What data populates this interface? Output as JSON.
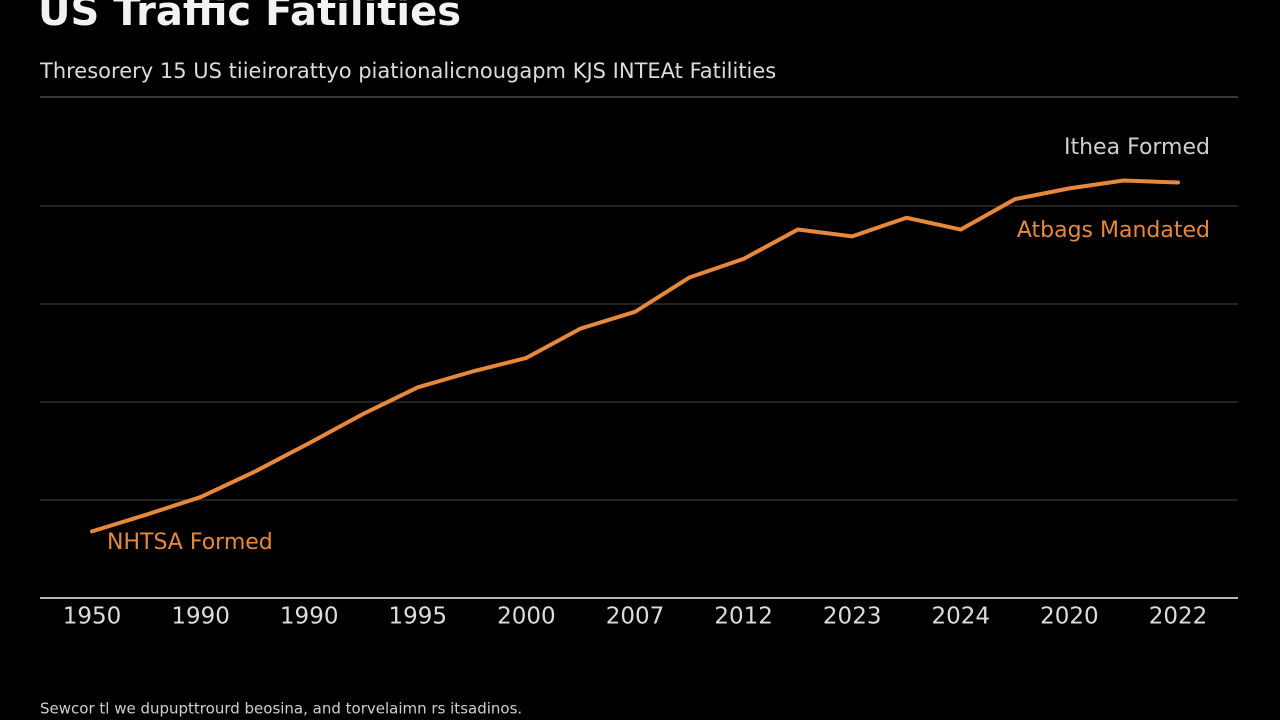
{
  "chart_data": {
    "type": "line",
    "title": "US Traffic Fatilities",
    "subtitle": "Thresorery 15 US tiieirorattyo piationalicnougapm KJS INTEAt Fatilities",
    "footnote": "Sewcor tl we dupupttrourd beosina, and torvelaimn rs itsadinos.",
    "categories": [
      "1950",
      null,
      "1990",
      null,
      "1990",
      null,
      "1995",
      null,
      "2000",
      null,
      "2007",
      null,
      "2012",
      null,
      "2023",
      null,
      "2024",
      null,
      "2020",
      null,
      "2022"
    ],
    "series": [
      {
        "name": "US Traffic Fatilities",
        "color": "#e8883a",
        "values": [
          0.68,
          0.85,
          1.03,
          1.29,
          1.58,
          1.88,
          2.15,
          2.31,
          2.45,
          2.75,
          2.92,
          3.27,
          3.46,
          3.76,
          3.69,
          3.88,
          3.76,
          4.07,
          4.18,
          4.26,
          4.24
        ]
      }
    ],
    "ylim": [
      0,
      5
    ],
    "yticks": [
      1,
      2,
      3,
      4
    ],
    "grid": true,
    "annotations": [
      {
        "text": "Ithea Formed",
        "color": "#cfcfcf"
      },
      {
        "text": "Atbags Mandated",
        "color": "#e8883a"
      },
      {
        "text": "NHTSA Formed",
        "color": "#e8883a"
      }
    ]
  }
}
